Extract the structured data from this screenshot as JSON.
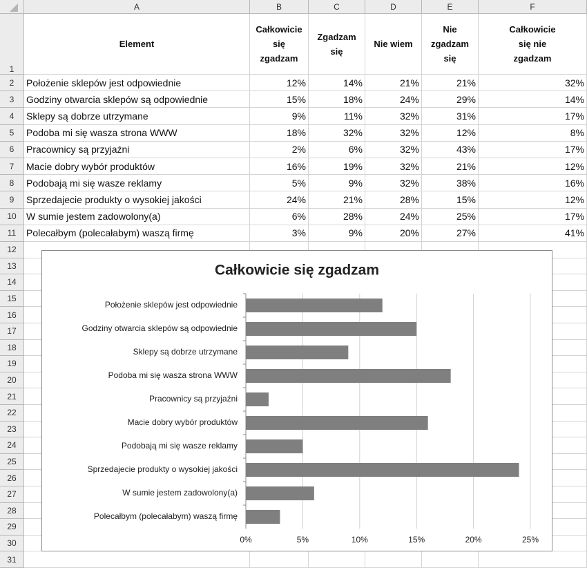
{
  "columns": [
    "A",
    "B",
    "C",
    "D",
    "E",
    "F"
  ],
  "row_numbers": [
    1,
    2,
    3,
    4,
    5,
    6,
    7,
    8,
    9,
    10,
    11,
    12,
    13,
    14,
    15,
    16,
    17,
    18,
    19,
    20,
    21,
    22,
    23,
    24,
    25,
    26,
    27,
    28,
    29,
    30,
    31
  ],
  "table": {
    "header": [
      "Element",
      "Całkowicie\nsię\nzgadzam",
      "Zgadzam\nsię",
      "Nie wiem",
      "Nie\nzgadzam\nsię",
      "Całkowicie\nsię nie\nzgadzam"
    ],
    "rows": [
      [
        "Położenie sklepów jest odpowiednie",
        "12%",
        "14%",
        "21%",
        "21%",
        "32%"
      ],
      [
        "Godziny otwarcia sklepów są odpowiednie",
        "15%",
        "18%",
        "24%",
        "29%",
        "14%"
      ],
      [
        "Sklepy są dobrze utrzymane",
        "9%",
        "11%",
        "32%",
        "31%",
        "17%"
      ],
      [
        "Podoba mi się wasza strona WWW",
        "18%",
        "32%",
        "32%",
        "12%",
        "8%"
      ],
      [
        "Pracownicy są przyjaźni",
        "2%",
        "6%",
        "32%",
        "43%",
        "17%"
      ],
      [
        "Macie dobry wybór produktów",
        "16%",
        "19%",
        "32%",
        "21%",
        "12%"
      ],
      [
        "Podobają mi się wasze reklamy",
        "5%",
        "9%",
        "32%",
        "38%",
        "16%"
      ],
      [
        "Sprzedajecie produkty o wysokiej jakości",
        "24%",
        "21%",
        "28%",
        "15%",
        "12%"
      ],
      [
        "W sumie jestem zadowolony(a)",
        "6%",
        "28%",
        "24%",
        "25%",
        "17%"
      ],
      [
        "Polecałbym (polecałabym) waszą firmę",
        "3%",
        "9%",
        "20%",
        "27%",
        "41%"
      ]
    ]
  },
  "chart_data": {
    "type": "bar",
    "orientation": "horizontal",
    "title": "Całkowicie się zgadzam",
    "categories": [
      "Położenie sklepów jest odpowiednie",
      "Godziny otwarcia sklepów są odpowiednie",
      "Sklepy są dobrze utrzymane",
      "Podoba mi się wasza strona WWW",
      "Pracownicy są przyjaźni",
      "Macie dobry wybór produktów",
      "Podobają mi się wasze reklamy",
      "Sprzedajecie produkty o wysokiej jakości",
      "W sumie jestem zadowolony(a)",
      "Polecałbym (polecałabym) waszą firmę"
    ],
    "values": [
      12,
      15,
      9,
      18,
      2,
      16,
      5,
      24,
      6,
      3
    ],
    "color": "#7f7f7f",
    "xlim": [
      0,
      25
    ],
    "xticks": [
      {
        "value": 0,
        "label": "0%"
      },
      {
        "value": 5,
        "label": "5%"
      },
      {
        "value": 10,
        "label": "10%"
      },
      {
        "value": 15,
        "label": "15%"
      },
      {
        "value": 20,
        "label": "20%"
      },
      {
        "value": 25,
        "label": "25%"
      }
    ],
    "grid": true
  }
}
